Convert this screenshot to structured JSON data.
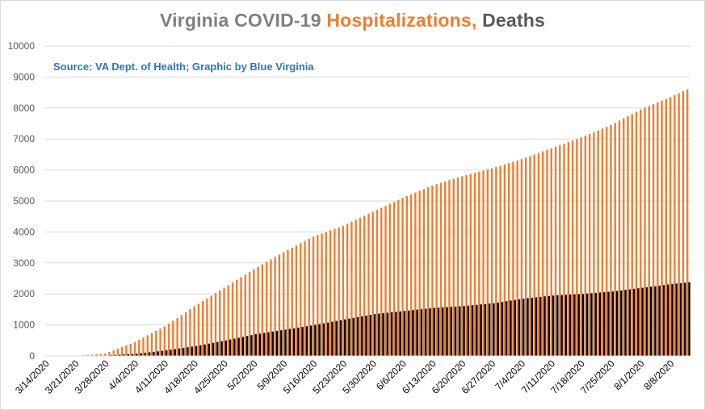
{
  "chart_data": {
    "type": "bar",
    "title_parts": [
      "Virginia COVID-19 ",
      "Hospitalizations, ",
      "Deaths"
    ],
    "subtitle": "Source: VA Dept. of Health; Graphic by Blue Virginia",
    "ylim": [
      0,
      10000
    ],
    "y_ticks": [
      "0",
      "1000",
      "2000",
      "3000",
      "4000",
      "5000",
      "6000",
      "7000",
      "8000",
      "9000",
      "10000"
    ],
    "x_tick_labels": [
      "3/14/2020",
      "3/21/2020",
      "3/28/2020",
      "4/4/2020",
      "4/11/2020",
      "4/18/2020",
      "4/25/2020",
      "5/2/2020",
      "5/9/2020",
      "5/16/2020",
      "5/23/2020",
      "5/30/2020",
      "6/6/2020",
      "6/13/2020",
      "6/20/2020",
      "6/27/2020",
      "7/4/2020",
      "7/11/2020",
      "7/18/2020",
      "7/25/2020",
      "8/1/2020",
      "8/8/2020"
    ],
    "series": [
      {
        "name": "Hospitalizations",
        "color": "#ed7d31",
        "keyframes": [
          [
            0,
            0
          ],
          [
            7,
            0
          ],
          [
            14,
            75
          ],
          [
            21,
            450
          ],
          [
            28,
            950
          ],
          [
            35,
            1600
          ],
          [
            42,
            2200
          ],
          [
            49,
            2800
          ],
          [
            56,
            3350
          ],
          [
            63,
            3850
          ],
          [
            70,
            4200
          ],
          [
            77,
            4650
          ],
          [
            84,
            5100
          ],
          [
            91,
            5500
          ],
          [
            98,
            5800
          ],
          [
            105,
            6050
          ],
          [
            112,
            6350
          ],
          [
            119,
            6700
          ],
          [
            126,
            7050
          ],
          [
            133,
            7450
          ],
          [
            140,
            7950
          ],
          [
            147,
            8350
          ],
          [
            151,
            8600
          ]
        ]
      },
      {
        "name": "Deaths",
        "color": "#000000",
        "keyframes": [
          [
            0,
            0
          ],
          [
            14,
            15
          ],
          [
            21,
            70
          ],
          [
            28,
            180
          ],
          [
            35,
            320
          ],
          [
            42,
            500
          ],
          [
            49,
            700
          ],
          [
            56,
            850
          ],
          [
            63,
            1000
          ],
          [
            70,
            1180
          ],
          [
            77,
            1350
          ],
          [
            84,
            1450
          ],
          [
            91,
            1550
          ],
          [
            98,
            1610
          ],
          [
            105,
            1700
          ],
          [
            112,
            1850
          ],
          [
            119,
            1950
          ],
          [
            126,
            2000
          ],
          [
            133,
            2080
          ],
          [
            140,
            2200
          ],
          [
            147,
            2320
          ],
          [
            151,
            2380
          ]
        ]
      }
    ],
    "days": 152,
    "grid": true,
    "legend": "none"
  }
}
